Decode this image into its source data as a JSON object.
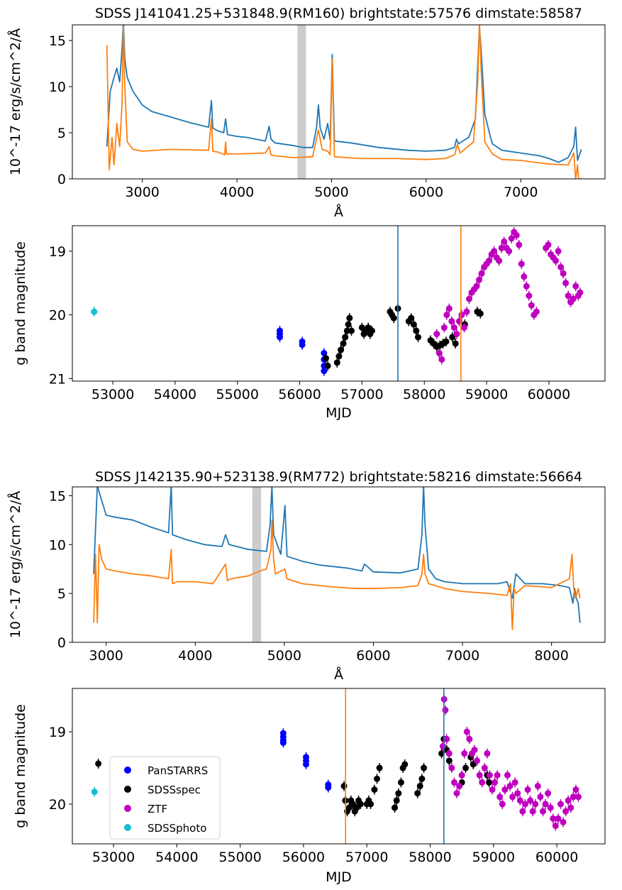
{
  "chart_data": [
    {
      "type": "line",
      "title": "SDSS J141041.25+531848.9(RM160) brightstate:57576 dimstate:58587",
      "xlabel": "Å",
      "ylabel": "10^-17 erg/s/cm^2/Å",
      "xlim": [
        2260,
        7890
      ],
      "ylim": [
        0,
        16.7
      ],
      "xticks": [
        3000,
        4000,
        5000,
        6000,
        7000
      ],
      "yticks": [
        0,
        5,
        10,
        15
      ],
      "shaded_band": [
        4640,
        4730
      ],
      "series": [
        {
          "name": "brightstate",
          "color": "#1f77b4",
          "x": [
            2625,
            2660,
            2700,
            2730,
            2760,
            2785,
            2800,
            2815,
            2840,
            2900,
            3000,
            3100,
            3300,
            3500,
            3700,
            3730,
            3745,
            3800,
            3860,
            3880,
            3900,
            4000,
            4100,
            4300,
            4340,
            4360,
            4400,
            4600,
            4700,
            4800,
            4840,
            4861,
            4880,
            4920,
            4959,
            4985,
            5007,
            5030,
            5200,
            5500,
            5800,
            6000,
            6200,
            6300,
            6320,
            6340,
            6450,
            6520,
            6563,
            6580,
            6620,
            6680,
            6700,
            6800,
            7000,
            7200,
            7300,
            7400,
            7500,
            7560,
            7580,
            7600,
            7640
          ],
          "y": [
            3.5,
            9.5,
            11,
            12,
            10.5,
            14,
            17,
            13,
            11,
            9.5,
            8,
            7.3,
            6.7,
            6.1,
            5.6,
            8.5,
            5.5,
            5.2,
            5.0,
            6.5,
            4.8,
            4.6,
            4.5,
            4.1,
            5.7,
            4.3,
            3.9,
            3.6,
            3.4,
            3.4,
            5.5,
            8.0,
            5.5,
            4.3,
            6.0,
            4.2,
            13.5,
            4.1,
            3.9,
            3.4,
            3.1,
            3.0,
            3.1,
            3.4,
            4.3,
            3.8,
            4.5,
            6.5,
            16.5,
            14,
            7.0,
            4.5,
            3.8,
            3.1,
            2.8,
            2.5,
            2.2,
            1.8,
            2.3,
            3.5,
            5.6,
            2.0,
            3.2
          ]
        },
        {
          "name": "dimstate",
          "color": "#ff7f0e",
          "x": [
            2625,
            2650,
            2680,
            2700,
            2730,
            2760,
            2785,
            2800,
            2815,
            2840,
            2900,
            3000,
            3300,
            3700,
            3730,
            3745,
            3800,
            3870,
            3880,
            3890,
            4000,
            4300,
            4340,
            4360,
            4400,
            4600,
            4800,
            4861,
            4900,
            4959,
            4985,
            5007,
            5030,
            5300,
            5700,
            6000,
            6200,
            6300,
            6330,
            6360,
            6500,
            6545,
            6563,
            6580,
            6620,
            6700,
            6800,
            7000,
            7300,
            7500,
            7560,
            7580,
            7600,
            7610,
            7640
          ],
          "y": [
            14.5,
            1.0,
            4.5,
            1.5,
            6.0,
            3.5,
            8.0,
            16.5,
            10.0,
            4.0,
            3.2,
            3.0,
            3.2,
            3.1,
            6.5,
            3.0,
            2.9,
            2.6,
            4.0,
            2.7,
            2.7,
            2.8,
            3.5,
            2.6,
            2.5,
            2.3,
            2.4,
            5.3,
            3.2,
            3.0,
            2.6,
            13.0,
            2.4,
            2.2,
            2.2,
            2.1,
            2.2,
            2.6,
            3.7,
            2.8,
            4.0,
            10.5,
            17.0,
            12.0,
            4.0,
            2.7,
            2.1,
            2.0,
            1.6,
            1.5,
            2.8,
            0.0,
            1.5,
            0.0,
            0.0
          ]
        }
      ]
    },
    {
      "type": "scatter",
      "title": "",
      "xlabel": "MJD",
      "ylabel": "g band magnitude",
      "xlim": [
        52350,
        60900
      ],
      "ylim": [
        21.04,
        18.6
      ],
      "y_inverted": true,
      "xticks": [
        53000,
        54000,
        55000,
        56000,
        57000,
        58000,
        59000,
        60000
      ],
      "yticks": [
        19,
        20,
        21
      ],
      "vlines": [
        {
          "x": 57576,
          "color": "#1f77b4"
        },
        {
          "x": 58587,
          "color": "#ff7f0e"
        }
      ],
      "series": [
        {
          "name": "SDSSphoto",
          "color": "#17becf",
          "x": [
            52700
          ],
          "y": [
            19.95
          ]
        },
        {
          "name": "PanSTARRS",
          "color": "#0000ff",
          "x": [
            55680,
            55680,
            55680,
            56040,
            56040,
            56390,
            56390,
            56390,
            56390
          ],
          "y": [
            20.25,
            20.3,
            20.35,
            20.42,
            20.47,
            20.6,
            20.7,
            20.8,
            20.88
          ]
        },
        {
          "name": "SDSSspec",
          "color": "#000000",
          "x": [
            56420,
            56450,
            56600,
            56630,
            56660,
            56700,
            56730,
            56760,
            56780,
            56800,
            56830,
            57000,
            57030,
            57060,
            57100,
            57130,
            57160,
            57450,
            57480,
            57510,
            57576,
            57750,
            57790,
            57830,
            57870,
            57900,
            58100,
            58150,
            58200,
            58250,
            58300,
            58350,
            58450,
            58500,
            58650,
            58850,
            58900
          ],
          "y": [
            20.68,
            20.8,
            20.75,
            20.65,
            20.55,
            20.45,
            20.35,
            20.25,
            20.15,
            20.05,
            20.25,
            20.2,
            20.3,
            20.25,
            20.2,
            20.3,
            20.25,
            19.95,
            20.0,
            20.05,
            19.9,
            20.1,
            20.05,
            20.15,
            20.25,
            20.35,
            20.4,
            20.45,
            20.5,
            20.48,
            20.45,
            20.42,
            20.35,
            20.45,
            20.15,
            19.95,
            19.98
          ]
        },
        {
          "name": "ZTF",
          "color": "#bf00bf",
          "x": [
            58200,
            58240,
            58280,
            58320,
            58360,
            58400,
            58440,
            58480,
            58520,
            58560,
            58600,
            58640,
            58680,
            58720,
            58760,
            58800,
            58840,
            58880,
            58920,
            58960,
            59000,
            59040,
            59080,
            59120,
            59160,
            59200,
            59240,
            59280,
            59320,
            59360,
            59400,
            59440,
            59480,
            59520,
            59560,
            59600,
            59640,
            59680,
            59720,
            59760,
            59800,
            59950,
            59990,
            60030,
            60070,
            60110,
            60150,
            60190,
            60230,
            60270,
            60310,
            60350,
            60390,
            60430,
            60470,
            60500
          ],
          "y": [
            20.3,
            20.6,
            20.7,
            20.2,
            20.0,
            19.9,
            20.1,
            20.2,
            20.3,
            20.1,
            20.0,
            20.2,
            19.95,
            19.75,
            19.65,
            19.6,
            19.55,
            19.45,
            19.35,
            19.25,
            19.2,
            19.15,
            19.05,
            19.0,
            19.1,
            19.15,
            18.95,
            18.85,
            18.95,
            19.0,
            18.8,
            18.7,
            18.75,
            18.9,
            19.2,
            19.4,
            19.55,
            19.7,
            19.85,
            20.0,
            19.95,
            18.95,
            18.9,
            19.05,
            19.1,
            19.15,
            19.0,
            19.25,
            19.35,
            19.5,
            19.7,
            19.8,
            19.75,
            19.55,
            19.7,
            19.65
          ]
        }
      ]
    },
    {
      "type": "line",
      "title": "SDSS J142135.90+523138.9(RM772) brightstate:58216 dimstate:56664",
      "xlabel": "Å",
      "ylabel": "10^-17 erg/s/cm^2/Å",
      "xlim": [
        2620,
        8600
      ],
      "ylim": [
        0,
        15.9
      ],
      "xticks": [
        3000,
        4000,
        5000,
        6000,
        7000,
        8000
      ],
      "yticks": [
        0,
        5,
        10,
        15
      ],
      "shaded_band": [
        4640,
        4740
      ],
      "series": [
        {
          "name": "brightstate",
          "color": "#1f77b4",
          "x": [
            2860,
            2900,
            2950,
            3000,
            3100,
            3300,
            3500,
            3700,
            3730,
            3745,
            3900,
            4100,
            4300,
            4340,
            4380,
            4600,
            4800,
            4840,
            4861,
            4880,
            4960,
            5007,
            5030,
            5200,
            5400,
            5700,
            5870,
            5900,
            6000,
            6300,
            6500,
            6545,
            6563,
            6580,
            6620,
            6700,
            6800,
            7000,
            7200,
            7400,
            7500,
            7560,
            7600,
            7700,
            7900,
            8100,
            8200,
            8240,
            8260,
            8280,
            8300,
            8320
          ],
          "y": [
            7.0,
            16.0,
            14.5,
            13.0,
            12.8,
            12.5,
            11.8,
            11.2,
            16.0,
            11.0,
            10.5,
            10.0,
            9.8,
            11.0,
            10.0,
            9.5,
            9.3,
            12.0,
            16.0,
            11.0,
            9.0,
            14.0,
            8.8,
            8.3,
            7.9,
            7.6,
            7.3,
            8.0,
            7.2,
            7.1,
            7.5,
            11.0,
            16.0,
            12.0,
            7.5,
            6.5,
            6.2,
            6.0,
            6.0,
            6.0,
            6.2,
            4.5,
            7.0,
            6.0,
            6.0,
            5.8,
            5.6,
            4.0,
            5.5,
            4.5,
            4.0,
            2.0
          ]
        },
        {
          "name": "dimstate",
          "color": "#ff7f0e",
          "x": [
            2860,
            2880,
            2900,
            2920,
            2950,
            3000,
            3100,
            3300,
            3500,
            3700,
            3730,
            3745,
            3800,
            4000,
            4200,
            4340,
            4360,
            4400,
            4600,
            4700,
            4800,
            4850,
            4861,
            4880,
            4900,
            5007,
            5030,
            5200,
            5500,
            5800,
            6000,
            6300,
            6500,
            6545,
            6563,
            6580,
            6620,
            6800,
            7000,
            7300,
            7500,
            7540,
            7560,
            7580,
            7600,
            7700,
            8000,
            8200,
            8230,
            8250,
            8270,
            8300,
            8320
          ],
          "y": [
            2.0,
            9.0,
            2.0,
            10.0,
            8.5,
            7.5,
            7.3,
            7.0,
            6.8,
            6.5,
            9.5,
            6.0,
            6.2,
            6.2,
            6.0,
            8.0,
            6.3,
            6.5,
            6.8,
            7.2,
            7.5,
            9.5,
            12.5,
            8.5,
            7.0,
            7.5,
            6.5,
            6.0,
            5.7,
            5.5,
            5.5,
            5.6,
            5.8,
            7.0,
            9.0,
            7.0,
            6.0,
            5.5,
            5.2,
            5.0,
            4.8,
            6.0,
            1.3,
            5.5,
            5.0,
            5.8,
            5.6,
            6.5,
            9.0,
            5.5,
            4.5,
            5.5,
            4.5
          ]
        }
      ]
    },
    {
      "type": "scatter",
      "title": "",
      "xlabel": "MJD",
      "ylabel": "g band magnitude",
      "xlim": [
        52350,
        60760
      ],
      "ylim": [
        20.55,
        18.4
      ],
      "y_inverted": true,
      "xticks": [
        53000,
        54000,
        55000,
        56000,
        57000,
        58000,
        59000,
        60000
      ],
      "yticks": [
        19,
        20
      ],
      "vlines": [
        {
          "x": 58216,
          "color": "#1f77b4"
        },
        {
          "x": 56664,
          "color": "#ff7f0e"
        }
      ],
      "legend": {
        "placement": "lower-left",
        "entries": [
          "PanSTARRS",
          "SDSSspec",
          "ZTF",
          "SDSSphoto"
        ]
      },
      "series": [
        {
          "name": "SDSSphoto",
          "color": "#17becf",
          "x": [
            52700
          ],
          "y": [
            19.83
          ]
        },
        {
          "name": "PanSTARRS",
          "color": "#0000ff",
          "x": [
            55680,
            55680,
            55680,
            55680,
            56040,
            56040,
            56040,
            56390,
            56390
          ],
          "y": [
            19.02,
            19.07,
            19.12,
            19.15,
            19.35,
            19.4,
            19.45,
            19.73,
            19.77
          ]
        },
        {
          "name": "SDSSspec",
          "color": "#000000",
          "x": [
            52760,
            56640,
            56660,
            56690,
            56720,
            56750,
            56780,
            56810,
            56840,
            56870,
            56900,
            57000,
            57030,
            57060,
            57120,
            57160,
            57200,
            57440,
            57470,
            57500,
            57540,
            57570,
            57600,
            57800,
            57840,
            57870,
            57900,
            58180,
            58216,
            58260,
            58300,
            58500,
            58560,
            58640,
            58680,
            58900,
            58930
          ],
          "y": [
            19.44,
            19.75,
            19.95,
            20.1,
            20.05,
            19.95,
            20.0,
            20.1,
            20.05,
            19.95,
            20.0,
            20.0,
            19.95,
            20.0,
            19.8,
            19.65,
            19.5,
            20.05,
            19.95,
            19.85,
            19.7,
            19.5,
            19.45,
            19.85,
            19.75,
            19.65,
            19.5,
            19.3,
            19.1,
            19.25,
            19.4,
            19.7,
            19.5,
            19.35,
            19.45,
            19.6,
            19.7
          ]
        },
        {
          "name": "ZTF",
          "color": "#bf00bf",
          "x": [
            58200,
            58220,
            58240,
            58260,
            58300,
            58340,
            58380,
            58420,
            58460,
            58500,
            58540,
            58580,
            58620,
            58660,
            58700,
            58740,
            58780,
            58820,
            58860,
            58900,
            58940,
            58980,
            59020,
            59060,
            59100,
            59140,
            59180,
            59220,
            59260,
            59300,
            59340,
            59380,
            59420,
            59460,
            59500,
            59540,
            59580,
            59620,
            59660,
            59700,
            59740,
            59780,
            59820,
            59860,
            59900,
            59940,
            59980,
            60020,
            60060,
            60100,
            60140,
            60180,
            60220,
            60260,
            60300,
            60340
          ],
          "y": [
            19.2,
            18.55,
            18.7,
            19.1,
            19.3,
            19.5,
            19.7,
            19.85,
            19.75,
            19.6,
            19.3,
            19.0,
            19.1,
            19.3,
            19.25,
            19.4,
            19.6,
            19.7,
            19.5,
            19.3,
            19.6,
            19.8,
            19.7,
            19.6,
            19.9,
            20.0,
            19.8,
            19.6,
            19.75,
            19.9,
            19.7,
            19.85,
            19.95,
            20.1,
            20.0,
            19.8,
            19.95,
            20.1,
            20.0,
            19.75,
            19.9,
            20.1,
            20.0,
            19.85,
            20.05,
            20.2,
            20.3,
            20.2,
            20.0,
            20.25,
            20.1,
            19.95,
            20.05,
            19.9,
            19.8,
            19.9
          ]
        }
      ]
    }
  ]
}
